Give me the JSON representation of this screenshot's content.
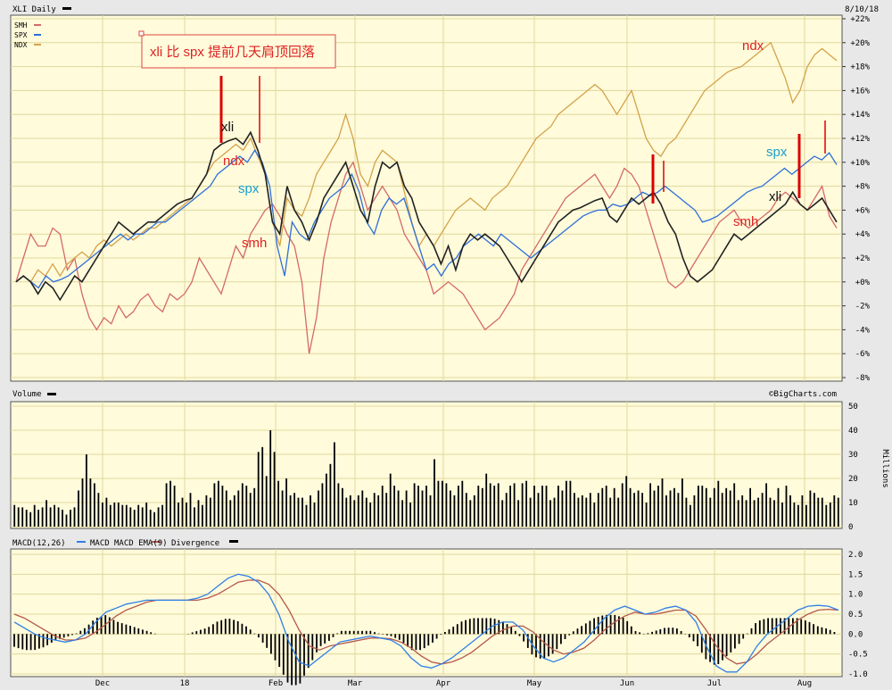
{
  "header": {
    "title": "XLI Daily",
    "date": "8/10/18"
  },
  "legend": [
    {
      "label": "SMH",
      "color": "#d46a6a"
    },
    {
      "label": "SPX",
      "color": "#2f6fd8"
    },
    {
      "label": "NDX",
      "color": "#d4a24a"
    }
  ],
  "annotations": {
    "note": "xli 比 spx 提前几天肩顶回落",
    "labels": [
      "xli",
      "ndx",
      "spx",
      "smh",
      "ndx",
      "spx",
      "xli",
      "smh"
    ]
  },
  "colors": {
    "bg": "#fffbdb",
    "grid": "#e0d89c",
    "xli": "#222222",
    "smh": "#d46a6a",
    "spx": "#2f6fd8",
    "ndx": "#d4a24a",
    "red_mark": "#dd0000",
    "macd_line": "#2f7fe8",
    "macd_ema": "#b5584a"
  },
  "volume_panel": {
    "title": "Volume",
    "credit": "©BigCharts.com",
    "units": "Millions"
  },
  "macd_panel": {
    "title": "MACD(12,26)",
    "line_label": "MACD",
    "ema_label": "MACD EMA(9)",
    "div_label": "Divergence"
  },
  "x_axis": {
    "months": [
      "Dec",
      "18",
      "Feb",
      "Mar",
      "Apr",
      "May",
      "Jun",
      "Jul",
      "Aug"
    ]
  },
  "chart_data": [
    {
      "type": "line",
      "title": "XLI Daily",
      "ylabel": "% change",
      "ylim": [
        -8,
        22
      ],
      "yticks": [
        "+22%",
        "+20%",
        "+18%",
        "+16%",
        "+14%",
        "+12%",
        "+10%",
        "+8%",
        "+6%",
        "+4%",
        "+2%",
        "+0%",
        "-2%",
        "-4%",
        "-6%",
        "-8%"
      ],
      "series": [
        {
          "name": "XLI",
          "values": [
            0,
            0.5,
            0,
            -1,
            0,
            -0.5,
            -1.5,
            -0.5,
            0.5,
            0,
            1,
            2,
            3,
            4,
            5,
            4.5,
            4,
            4.5,
            5,
            5,
            5.5,
            6,
            6.5,
            6.8,
            7,
            8,
            9,
            11,
            11.5,
            11.8,
            12,
            11.5,
            12.5,
            11,
            9,
            5,
            4,
            8,
            6,
            5,
            3.5,
            5,
            7,
            8,
            9,
            10,
            8,
            6,
            5,
            8,
            10,
            9.5,
            10,
            8,
            7,
            5,
            4,
            3,
            1.5,
            3,
            1,
            3,
            4,
            3.5,
            4,
            3.5,
            3,
            2,
            1,
            0,
            1,
            2,
            3,
            4,
            5,
            5.5,
            6,
            6.2,
            6.5,
            6.8,
            7,
            5.5,
            5,
            6,
            7,
            6.5,
            7,
            7.5,
            6.5,
            5,
            4,
            2,
            0.5,
            0,
            0.5,
            1,
            2,
            3,
            4,
            3.5,
            4,
            4.5,
            5,
            5.5,
            6,
            6.5,
            7.5,
            6.5,
            6,
            6.5,
            7,
            6,
            5
          ]
        },
        {
          "name": "SMH",
          "values": [
            0,
            2,
            4,
            3,
            3,
            4.5,
            4,
            1,
            2,
            -1,
            -3,
            -4,
            -3,
            -3.5,
            -2,
            -3,
            -2.5,
            -1.5,
            -1,
            -2,
            -2.5,
            -1,
            -1.5,
            -1,
            0,
            2,
            1,
            0,
            -1,
            1,
            3,
            2,
            4,
            5,
            6,
            6.5,
            5.5,
            4,
            3,
            0,
            -6,
            -3,
            2,
            5,
            7,
            9,
            10,
            8,
            6,
            7,
            8,
            7,
            6,
            4,
            3,
            2,
            1,
            -1,
            -0.5,
            0,
            -0.5,
            -1,
            -2,
            -3,
            -4,
            -3.5,
            -3,
            -2,
            -1,
            1,
            2,
            3,
            4,
            5,
            6,
            7,
            7.5,
            8,
            8.5,
            9,
            8,
            7,
            8,
            9.5,
            9,
            8,
            6,
            4,
            2,
            0,
            -0.5,
            0,
            1,
            2,
            3,
            4,
            5,
            5.5,
            6,
            5,
            4.5,
            5,
            5.5,
            6,
            7,
            7.5,
            7,
            6.5,
            6,
            7,
            8,
            5.5,
            4.5
          ]
        },
        {
          "name": "SPX",
          "values": [
            0,
            0.5,
            0,
            -0.5,
            0.5,
            0,
            0.2,
            0.5,
            1,
            1.5,
            2,
            2.5,
            3,
            3.5,
            4,
            3.5,
            4,
            4,
            4.5,
            5,
            5,
            5.5,
            6,
            6.5,
            7,
            7.5,
            8,
            9,
            9.5,
            10,
            10.5,
            10,
            11,
            10,
            8,
            3,
            0.5,
            5,
            4,
            3.5,
            5,
            6,
            7,
            7.5,
            8,
            9,
            7.5,
            5,
            4,
            6,
            7,
            6.5,
            7,
            5,
            3,
            1,
            1.5,
            0.5,
            1.5,
            2,
            3,
            3.5,
            4,
            3.5,
            3,
            4,
            3.5,
            3,
            2.5,
            2,
            2.5,
            3,
            3.5,
            4,
            4.5,
            5,
            5.5,
            5.8,
            6,
            6,
            6.5,
            6.3,
            6.5,
            7,
            7.5,
            7.2,
            7.5,
            8,
            7.5,
            7,
            6.5,
            6,
            5,
            5.2,
            5.5,
            6,
            6.5,
            7,
            7.5,
            7.8,
            8,
            8.5,
            9,
            9.5,
            9,
            9.5,
            10,
            10.5,
            10.2,
            10.8,
            9.8
          ]
        },
        {
          "name": "NDX",
          "values": [
            0,
            0.5,
            0,
            1,
            0.5,
            1.5,
            0.5,
            1.5,
            2,
            2.5,
            2,
            3,
            3.5,
            3,
            3.5,
            4,
            3.5,
            4,
            4.5,
            4.5,
            5,
            5.5,
            6,
            6.5,
            7,
            8,
            9,
            10,
            10.5,
            11,
            11.5,
            11,
            12,
            10.5,
            9,
            5,
            3,
            7,
            6,
            5.5,
            7,
            9,
            10,
            11,
            12,
            14,
            12,
            9,
            8,
            10,
            11,
            10.5,
            10,
            7.5,
            5,
            3,
            4,
            3,
            4,
            5,
            6,
            6.5,
            7,
            6.5,
            6,
            7,
            7.5,
            8,
            9,
            10,
            11,
            12,
            12.5,
            13,
            14,
            14.5,
            15,
            15.5,
            16,
            16.5,
            16,
            15,
            14,
            15,
            16,
            14,
            12,
            11,
            10.5,
            11.5,
            12,
            13,
            14,
            15,
            16,
            16.5,
            17,
            17.5,
            17.8,
            18,
            18.5,
            19,
            19.5,
            20,
            18.5,
            17,
            15,
            16,
            18,
            19,
            19.5,
            19,
            18.5
          ]
        }
      ]
    },
    {
      "type": "bar",
      "title": "Volume",
      "ylabel": "Millions",
      "ylim": [
        0,
        50
      ],
      "yticks": [
        "50",
        "40",
        "30",
        "20",
        "10",
        "0"
      ],
      "series": [
        {
          "name": "Volume",
          "values": [
            9,
            8,
            8,
            7,
            6,
            9,
            7,
            8,
            11,
            8,
            9,
            8,
            7,
            5,
            7,
            8,
            15,
            20,
            30,
            20,
            18,
            14,
            10,
            12,
            9,
            10,
            10,
            9,
            9,
            8,
            7,
            9,
            8,
            10,
            7,
            6,
            8,
            9,
            18,
            19,
            17,
            10,
            12,
            10,
            14,
            8,
            11,
            9,
            13,
            12,
            18,
            19,
            17,
            15,
            11,
            13,
            15,
            18,
            17,
            14,
            16,
            31,
            33,
            21,
            40,
            31,
            19,
            15,
            20,
            13,
            14,
            12,
            12,
            9,
            13,
            10,
            15,
            18,
            22,
            26,
            35,
            18,
            16,
            12,
            13,
            11,
            13,
            15,
            12,
            10,
            14,
            13,
            17,
            14,
            22,
            17,
            15,
            11,
            15,
            10,
            18,
            17,
            15,
            17,
            13,
            28,
            19,
            19,
            18,
            15,
            13,
            17,
            19,
            14,
            11,
            13,
            17,
            16,
            22,
            18,
            17,
            18,
            11,
            14,
            17,
            18,
            11,
            18,
            19,
            12,
            17,
            14,
            17,
            17,
            11,
            12,
            17,
            15,
            19,
            19,
            14,
            12,
            13,
            12,
            14,
            10,
            14,
            16,
            17,
            12,
            16,
            12,
            18,
            21,
            16,
            14,
            15,
            14,
            10,
            18,
            15,
            17,
            20,
            13,
            15,
            16,
            14,
            20,
            12,
            9,
            13,
            17,
            17,
            16,
            12,
            16,
            19,
            14,
            16,
            15,
            18,
            11,
            13,
            11,
            16,
            11,
            12,
            14,
            18,
            12,
            11,
            16,
            10,
            17,
            13,
            10,
            9,
            13,
            9,
            15,
            14,
            12,
            12,
            9,
            10,
            13,
            12
          ]
        }
      ]
    },
    {
      "type": "line",
      "title": "MACD(12,26)",
      "ylim": [
        -1.0,
        2.0
      ],
      "yticks": [
        "2.0",
        "1.5",
        "1.0",
        "0.5",
        "0.0",
        "-0.5",
        "-1.0"
      ],
      "series": [
        {
          "name": "MACD",
          "values": [
            0.3,
            0.15,
            0.0,
            -0.1,
            -0.15,
            -0.2,
            -0.15,
            0.0,
            0.3,
            0.55,
            0.65,
            0.75,
            0.8,
            0.85,
            0.85,
            0.85,
            0.85,
            0.85,
            0.9,
            1.0,
            1.2,
            1.4,
            1.5,
            1.45,
            1.3,
            1.0,
            0.5,
            -0.2,
            -0.7,
            -0.8,
            -0.6,
            -0.4,
            -0.2,
            -0.15,
            -0.1,
            -0.05,
            -0.1,
            -0.15,
            -0.3,
            -0.6,
            -0.8,
            -0.85,
            -0.75,
            -0.6,
            -0.4,
            -0.2,
            0.0,
            0.2,
            0.3,
            0.3,
            0.1,
            -0.3,
            -0.6,
            -0.7,
            -0.6,
            -0.4,
            -0.2,
            0.1,
            0.4,
            0.6,
            0.7,
            0.6,
            0.5,
            0.55,
            0.65,
            0.7,
            0.6,
            0.3,
            -0.3,
            -0.8,
            -0.95,
            -0.95,
            -0.7,
            -0.3,
            0.0,
            0.2,
            0.4,
            0.6,
            0.7,
            0.72,
            0.7,
            0.6
          ]
        },
        {
          "name": "MACD EMA(9)",
          "values": [
            0.5,
            0.4,
            0.25,
            0.1,
            -0.05,
            -0.15,
            -0.15,
            -0.1,
            0.05,
            0.25,
            0.45,
            0.6,
            0.7,
            0.8,
            0.85,
            0.85,
            0.85,
            0.85,
            0.85,
            0.9,
            1.0,
            1.15,
            1.3,
            1.35,
            1.35,
            1.25,
            1.0,
            0.6,
            0.1,
            -0.3,
            -0.4,
            -0.3,
            -0.25,
            -0.2,
            -0.15,
            -0.1,
            -0.1,
            -0.12,
            -0.2,
            -0.35,
            -0.55,
            -0.7,
            -0.75,
            -0.7,
            -0.6,
            -0.45,
            -0.25,
            -0.05,
            0.1,
            0.2,
            0.2,
            0.05,
            -0.2,
            -0.4,
            -0.5,
            -0.45,
            -0.35,
            -0.15,
            0.1,
            0.3,
            0.45,
            0.55,
            0.5,
            0.5,
            0.55,
            0.6,
            0.6,
            0.45,
            0.1,
            -0.3,
            -0.6,
            -0.75,
            -0.7,
            -0.5,
            -0.25,
            -0.05,
            0.15,
            0.35,
            0.5,
            0.6,
            0.62,
            0.6
          ]
        }
      ]
    }
  ]
}
